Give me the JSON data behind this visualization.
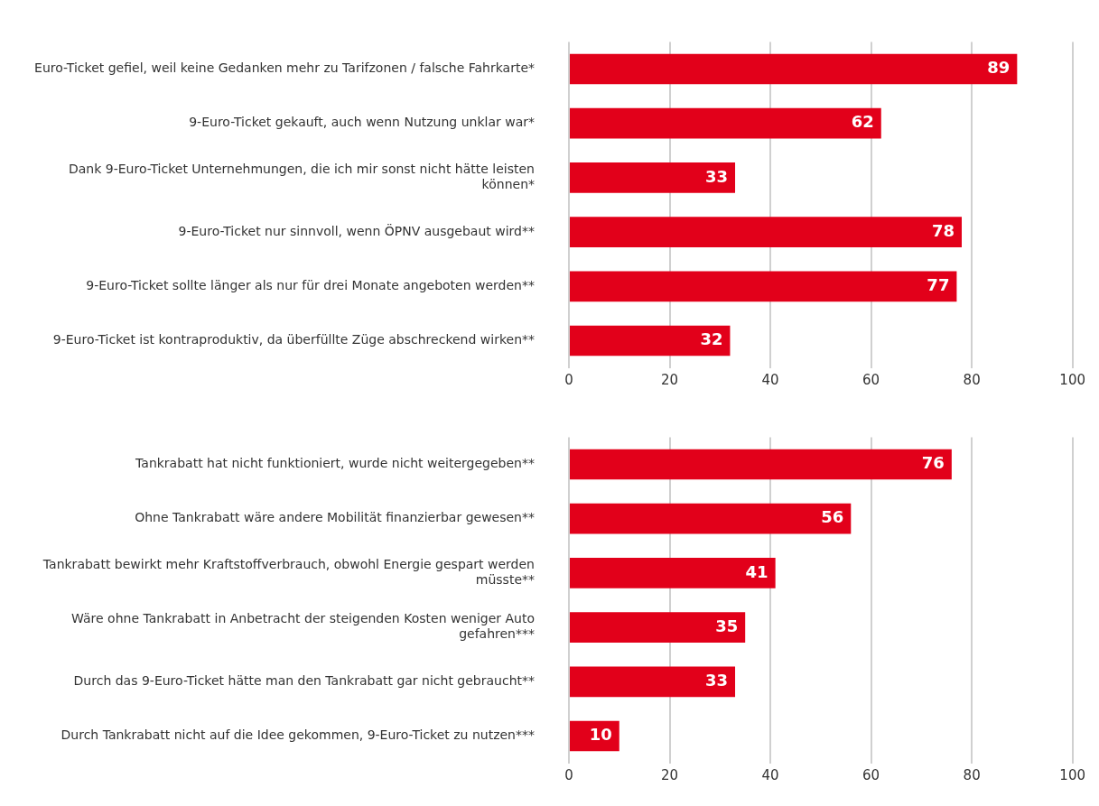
{
  "chart_data": [
    {
      "type": "bar",
      "orientation": "horizontal",
      "categories": [
        "Euro-Ticket gefiel, weil keine Gedanken mehr zu Tarifzonen / falsche Fahrkarte*",
        "9-Euro-Ticket gekauft, auch wenn Nutzung unklar war*",
        "Dank 9-Euro-Ticket Unternehmungen, die ich mir sonst nicht hätte leisten können*",
        "9-Euro-Ticket nur sinnvoll, wenn ÖPNV ausgebaut wird**",
        "9-Euro-Ticket sollte länger als nur für drei Monate angeboten werden**",
        "9-Euro-Ticket ist kontraproduktiv, da überfüllte Züge abschreckend wirken**"
      ],
      "values": [
        89,
        62,
        33,
        78,
        77,
        32
      ],
      "color": "#e2001a",
      "xlim": [
        0,
        100
      ],
      "xticks": [
        0,
        20,
        40,
        60,
        80,
        100
      ],
      "grid": "x",
      "data_labels": true
    },
    {
      "type": "bar",
      "orientation": "horizontal",
      "categories": [
        "Tankrabatt hat nicht funktioniert, wurde nicht weitergegeben**",
        "Ohne Tankrabatt wäre andere Mobilität finanzierbar gewesen**",
        "Tankrabatt bewirkt mehr Kraftstoffverbrauch, obwohl Energie gespart werden müsste**",
        "Wäre ohne Tankrabatt in Anbetracht der steigenden Kosten weniger Auto gefahren***",
        "Durch das 9-Euro-Ticket hätte man den Tankrabatt gar nicht gebraucht**",
        "Durch Tankrabatt nicht auf die Idee gekommen, 9-Euro-Ticket zu nutzen***"
      ],
      "values": [
        76,
        56,
        41,
        35,
        33,
        10
      ],
      "color": "#e2001a",
      "xlim": [
        0,
        100
      ],
      "xticks": [
        0,
        20,
        40,
        60,
        80,
        100
      ],
      "grid": "x",
      "data_labels": true
    }
  ]
}
